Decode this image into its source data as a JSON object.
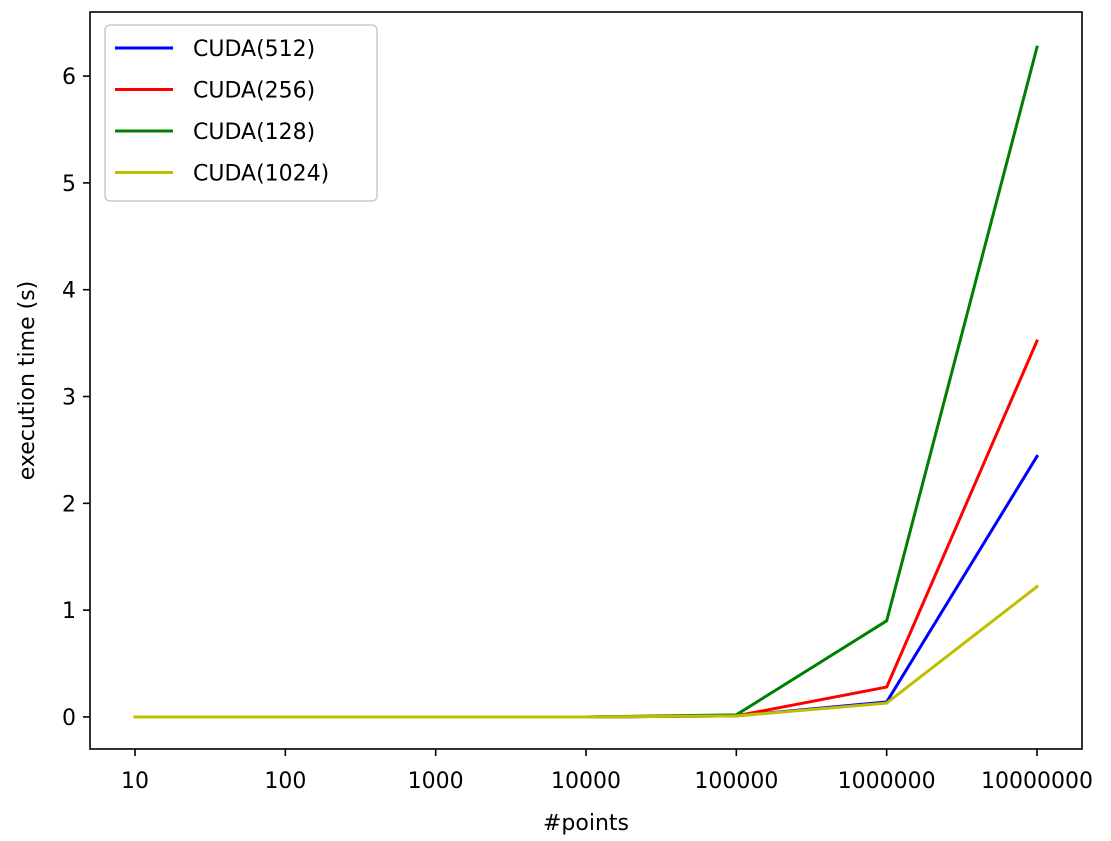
{
  "chart_data": {
    "type": "line",
    "xlabel": "#points",
    "ylabel": "execution time (s)",
    "categories": [
      "10",
      "100",
      "1000",
      "10000",
      "100000",
      "1000000",
      "10000000"
    ],
    "ylim": [
      -0.3,
      6.6
    ],
    "yticks": [
      "0",
      "1",
      "2",
      "3",
      "4",
      "5",
      "6"
    ],
    "grid": false,
    "legend_position": "top-left",
    "series": [
      {
        "name": "CUDA(512)",
        "color": "#0000ff",
        "values": [
          0.0,
          0.0,
          0.0,
          0.0,
          0.01,
          0.14,
          2.44
        ]
      },
      {
        "name": "CUDA(256)",
        "color": "#ff0000",
        "values": [
          0.0,
          0.0,
          0.0,
          0.0,
          0.01,
          0.28,
          3.52
        ]
      },
      {
        "name": "CUDA(128)",
        "color": "#008000",
        "values": [
          0.0,
          0.0,
          0.0,
          0.0,
          0.02,
          0.9,
          6.27
        ]
      },
      {
        "name": "CUDA(1024)",
        "color": "#bfbf00",
        "values": [
          0.0,
          0.0,
          0.0,
          0.0,
          0.01,
          0.13,
          1.22
        ]
      }
    ]
  }
}
